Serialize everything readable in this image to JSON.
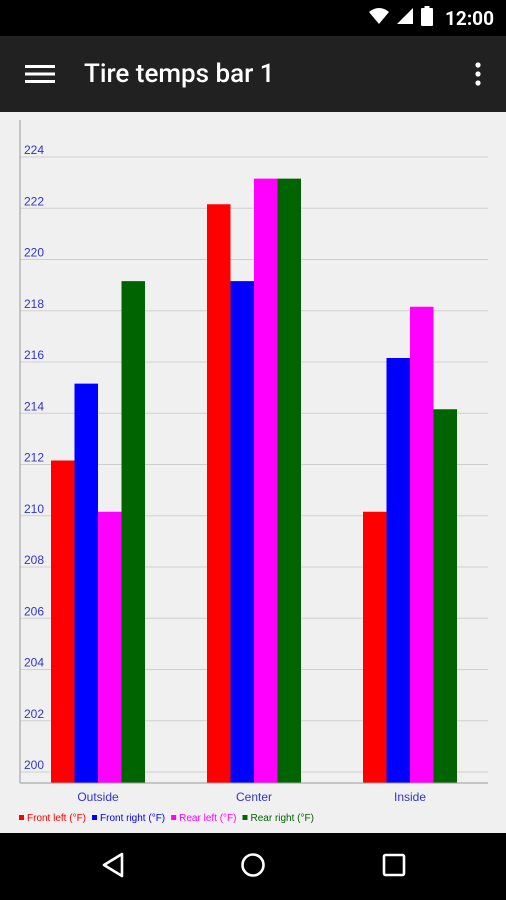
{
  "status_bar": {
    "time": "12:00",
    "icons": [
      "wifi-icon",
      "cell-signal-icon",
      "battery-icon"
    ]
  },
  "app_bar": {
    "title": "Tire temps bar 1",
    "menu_icon": "hamburger-menu-icon",
    "overflow_icon": "more-vertical-icon"
  },
  "nav_bar": {
    "icons": [
      "back-icon",
      "home-icon",
      "recents-icon"
    ]
  },
  "colors": {
    "status_bar": "#000000",
    "app_bar": "#212121",
    "chart_background": "#f0f0f0",
    "axis_label": "#3333cc",
    "grid": "#cfcfcf"
  },
  "chart_data": {
    "type": "bar",
    "title": "",
    "xlabel": "",
    "ylabel": "",
    "categories": [
      "Outside",
      "Center",
      "Inside"
    ],
    "ylim": [
      200,
      224
    ],
    "yticks": [
      200,
      202,
      204,
      206,
      208,
      210,
      212,
      214,
      216,
      218,
      220,
      222,
      224
    ],
    "grid": true,
    "legend_position": "bottom-left",
    "series": [
      {
        "name": "Front left (°F)",
        "color": "#ff0000",
        "values": [
          212,
          222,
          210
        ]
      },
      {
        "name": "Front right (°F)",
        "color": "#0000ff",
        "values": [
          215,
          219,
          216
        ]
      },
      {
        "name": "Rear left (°F)",
        "color": "#ff00ff",
        "values": [
          210,
          223,
          218
        ]
      },
      {
        "name": "Rear right (°F)",
        "color": "#006400",
        "values": [
          219,
          223,
          214
        ]
      }
    ]
  }
}
